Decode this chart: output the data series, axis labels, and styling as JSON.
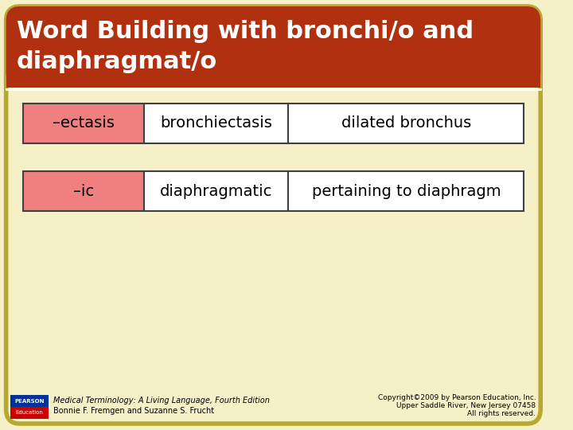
{
  "title_line1": "Word Building with bronchi/o and",
  "title_line2": "diaphragmat/o",
  "title_bg_color": "#b03010",
  "title_text_color": "#ffffff",
  "bg_color": "#f5f0c8",
  "border_color": "#b8a830",
  "table_border_color": "#404040",
  "cell_pink": "#f08080",
  "cell_white": "#ffffff",
  "rows": [
    {
      "col1": "–ectasis",
      "col2": "bronchiectasis",
      "col3": "dilated bronchus"
    },
    {
      "col1": "–ic",
      "col2": "diaphragmatic",
      "col3": "pertaining to diaphragm"
    }
  ],
  "footer_left_line1": "Medical Terminology: A Living Language, Fourth Edition",
  "footer_left_line2": "Bonnie F. Fremgen and Suzanne S. Frucht",
  "footer_right_line1": "Copyright©2009 by Pearson Education, Inc.",
  "footer_right_line2": "Upper Saddle River, New Jersey 07458",
  "footer_right_line3": "All rights reserved.",
  "pearson_box_color_top": "#003399",
  "pearson_box_color_bottom": "#cc0000",
  "pearson_text": "PEARSON\nEducation"
}
